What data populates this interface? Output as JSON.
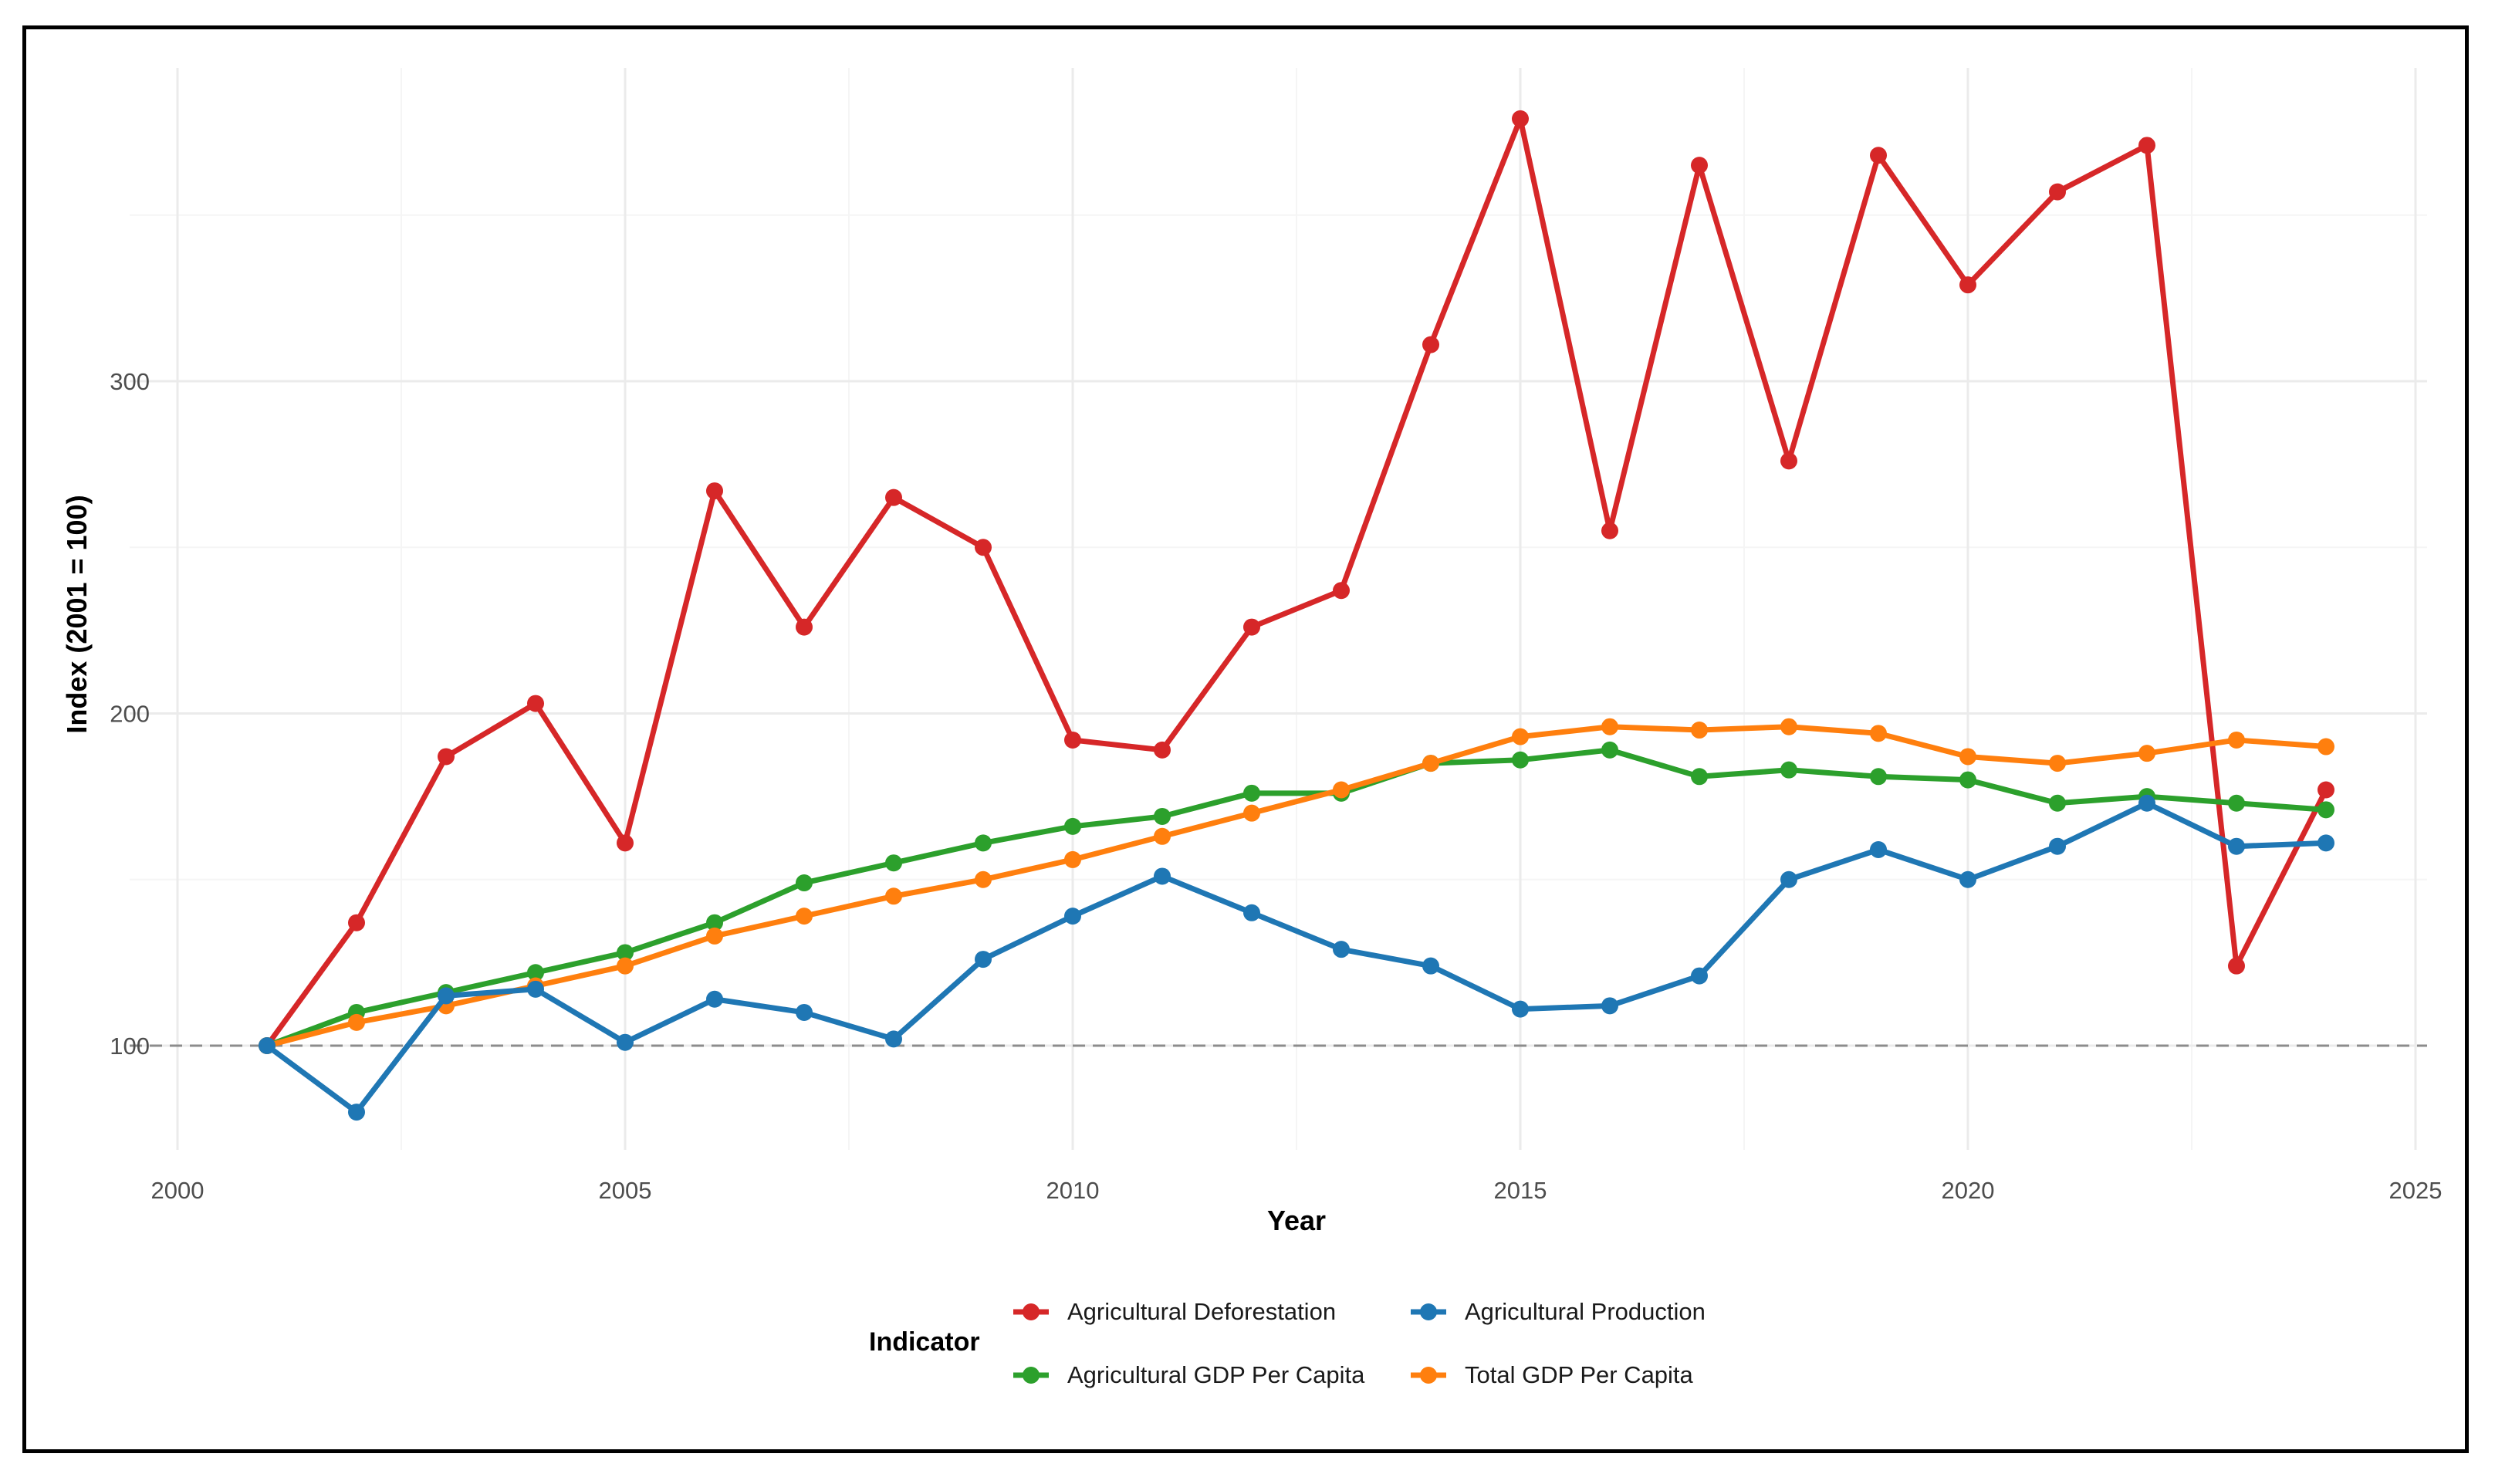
{
  "chart_data": {
    "type": "line",
    "xlabel": "Year",
    "ylabel": "Index (2001 = 100)",
    "xlim": [
      2000,
      2025
    ],
    "ylim": [
      68,
      388
    ],
    "x_ticks": [
      2000,
      2005,
      2010,
      2015,
      2020,
      2025
    ],
    "y_ticks": [
      100,
      200,
      300
    ],
    "reference_line": {
      "y": 100,
      "style": "dashed"
    },
    "grid": true,
    "legend": {
      "title": "Indicator",
      "placement": "bottom",
      "entries": [
        "Agricultural Deforestation",
        "Agricultural Production",
        "Agricultural GDP Per Capita",
        "Total GDP Per Capita"
      ]
    },
    "x": [
      2001,
      2002,
      2003,
      2004,
      2005,
      2006,
      2007,
      2008,
      2009,
      2010,
      2011,
      2012,
      2013,
      2014,
      2015,
      2016,
      2017,
      2018,
      2019,
      2020,
      2021,
      2022,
      2023,
      2024
    ],
    "series": [
      {
        "name": "Agricultural Deforestation",
        "color": "#d62728",
        "values": [
          100,
          137,
          187,
          203,
          161,
          267,
          226,
          265,
          250,
          192,
          189,
          226,
          237,
          311,
          379,
          255,
          365,
          276,
          368,
          329,
          357,
          371,
          124,
          177
        ]
      },
      {
        "name": "Agricultural GDP Per Capita",
        "color": "#2ca02c",
        "values": [
          100,
          110,
          116,
          122,
          128,
          137,
          149,
          155,
          161,
          166,
          169,
          176,
          176,
          185,
          186,
          189,
          181,
          183,
          181,
          180,
          173,
          175,
          173,
          171
        ]
      },
      {
        "name": "Total GDP Per Capita",
        "color": "#ff7f0e",
        "values": [
          100,
          107,
          112,
          118,
          124,
          133,
          139,
          145,
          150,
          156,
          163,
          170,
          177,
          185,
          193,
          196,
          195,
          196,
          194,
          187,
          185,
          188,
          192,
          190
        ]
      },
      {
        "name": "Agricultural Production",
        "color": "#1f77b4",
        "values": [
          100,
          80,
          115,
          117,
          101,
          114,
          110,
          102,
          126,
          139,
          151,
          140,
          129,
          124,
          111,
          112,
          121,
          150,
          159,
          150,
          160,
          173,
          160,
          161
        ]
      }
    ]
  }
}
